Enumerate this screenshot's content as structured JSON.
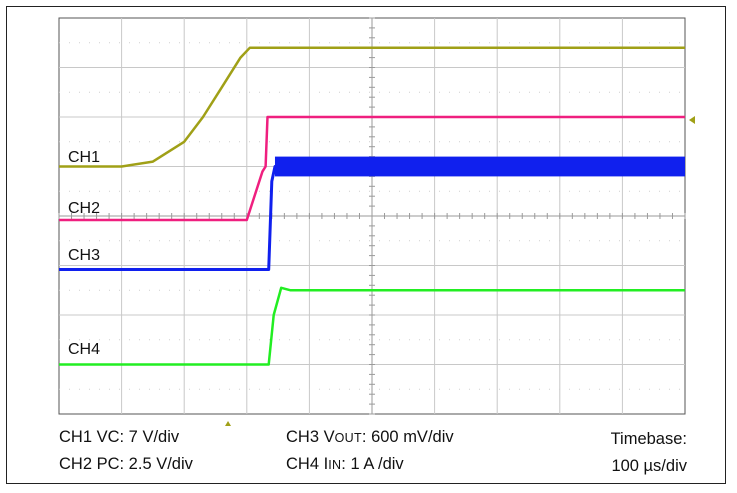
{
  "chart_data": {
    "type": "line",
    "title": "",
    "x_unit": "µs",
    "xlim": [
      0,
      1000
    ],
    "ylabel_unit": "div",
    "ylim": [
      0,
      8
    ],
    "grid": true,
    "series": [
      {
        "name": "CH1",
        "color": "#a0a017",
        "points": [
          [
            0,
            5.0
          ],
          [
            100,
            5.0
          ],
          [
            150,
            5.1
          ],
          [
            200,
            5.5
          ],
          [
            230,
            6.0
          ],
          [
            260,
            6.6
          ],
          [
            290,
            7.2
          ],
          [
            305,
            7.4
          ],
          [
            1000,
            7.4
          ]
        ]
      },
      {
        "name": "CH2",
        "color": "#ef1f7f",
        "points": [
          [
            0,
            3.92
          ],
          [
            300,
            3.92
          ],
          [
            325,
            4.9
          ],
          [
            330,
            5.0
          ],
          [
            333,
            6.0
          ],
          [
            1000,
            6.0
          ]
        ]
      },
      {
        "name": "CH3",
        "color": "#1020ee",
        "points": [
          [
            0,
            2.92
          ],
          [
            335,
            2.92
          ],
          [
            340,
            4.7
          ],
          [
            345,
            5.0
          ],
          [
            1000,
            5.0
          ]
        ]
      },
      {
        "name": "CH4",
        "color": "#22ee22",
        "points": [
          [
            0,
            1.0
          ],
          [
            335,
            1.0
          ],
          [
            343,
            2.0
          ],
          [
            355,
            2.55
          ],
          [
            370,
            2.5
          ],
          [
            1000,
            2.5
          ]
        ]
      }
    ],
    "series_labels": [
      "CH1",
      "CH2",
      "CH3",
      "CH4"
    ]
  },
  "footer": {
    "ch1_prefix": "CH1 VC: 7 V/div",
    "ch2_prefix": "CH2 PC: 2.5 V/div",
    "ch3_a": "CH3 V",
    "ch3_sub": "OUT",
    "ch3_b": ": 600 mV/div",
    "ch4_a": "CH4 I",
    "ch4_sub": "IN",
    "ch4_b": ": 1 A /div",
    "timebase_label": "Timebase:",
    "timebase_value": "100 µs/div"
  }
}
